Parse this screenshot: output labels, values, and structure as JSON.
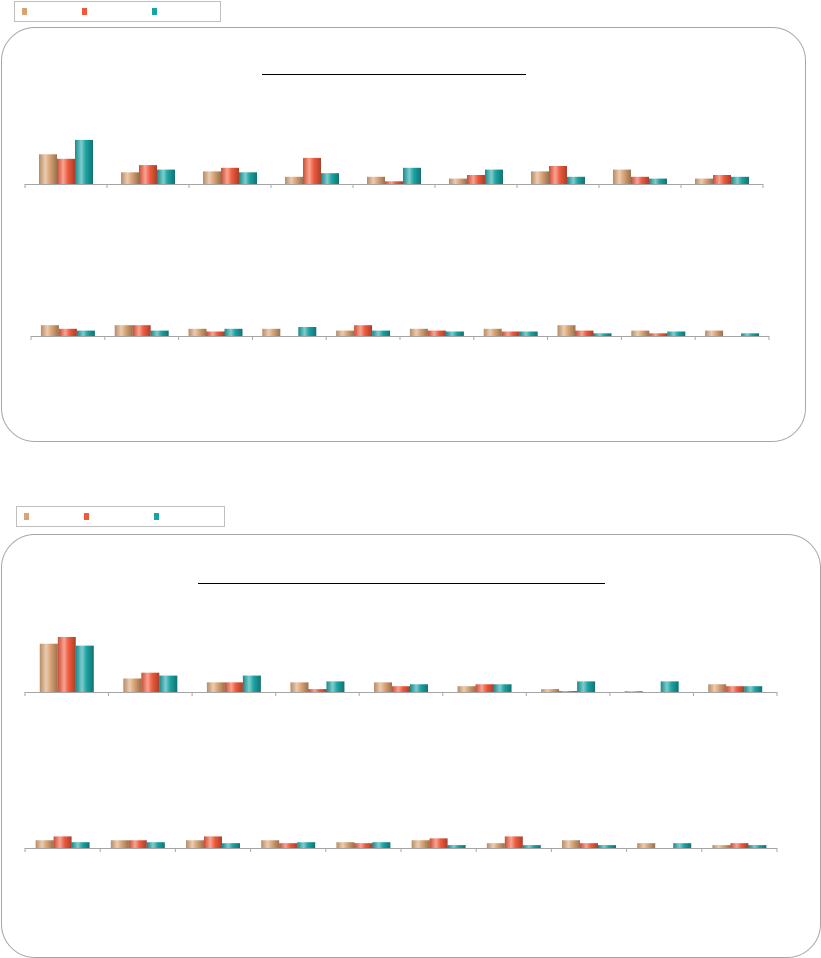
{
  "colors": {
    "series_a": "#d9a373",
    "series_b": "#f05a3c",
    "series_c": "#1aa3a3",
    "axis": "#a6a6a6"
  },
  "chart_data": [
    {
      "type": "bar",
      "title": "",
      "legend": {
        "position": "top-left",
        "entries": [
          "",
          "",
          ""
        ]
      },
      "grid": false,
      "rows": [
        {
          "categories": [
            "",
            "",
            "",
            "",
            "",
            "",
            "",
            "",
            ""
          ],
          "ylim": [
            0,
            50
          ],
          "series": [
            {
              "values": [
                33,
                13,
                14,
                8,
                8,
                6,
                14,
                16,
                6
              ]
            },
            {
              "values": [
                28,
                21,
                18,
                29,
                3,
                10,
                20,
                8,
                10
              ]
            },
            {
              "values": [
                49,
                16,
                13,
                12,
                18,
                16,
                8,
                6,
                8
              ]
            }
          ]
        },
        {
          "categories": [
            "",
            "",
            "",
            "",
            "",
            "",
            "",
            "",
            "",
            ""
          ],
          "ylim": [
            0,
            50
          ],
          "series": [
            {
              "values": [
                12,
                12,
                8,
                8,
                6,
                8,
                8,
                12,
                6,
                6
              ]
            },
            {
              "values": [
                8,
                12,
                5,
                0,
                12,
                6,
                5,
                6,
                3,
                0
              ]
            },
            {
              "values": [
                6,
                6,
                8,
                10,
                6,
                5,
                5,
                3,
                5,
                3
              ]
            }
          ]
        }
      ]
    },
    {
      "type": "bar",
      "title": "",
      "legend": {
        "position": "top-left",
        "entries": [
          "",
          "",
          ""
        ]
      },
      "grid": false,
      "rows": [
        {
          "categories": [
            "",
            "",
            "",
            "",
            "",
            "",
            "",
            "",
            ""
          ],
          "ylim": [
            0,
            58
          ],
          "series": [
            {
              "values": [
                50,
                14,
                10,
                10,
                10,
                6,
                3,
                1,
                8
              ]
            },
            {
              "values": [
                57,
                20,
                10,
                3,
                6,
                8,
                1,
                0,
                6
              ]
            },
            {
              "values": [
                48,
                17,
                17,
                11,
                8,
                8,
                11,
                11,
                6
              ]
            }
          ]
        },
        {
          "categories": [
            "",
            "",
            "",
            "",
            "",
            "",
            "",
            "",
            "",
            ""
          ],
          "ylim": [
            0,
            58
          ],
          "series": [
            {
              "values": [
                8,
                8,
                8,
                8,
                6,
                8,
                5,
                8,
                5,
                3
              ]
            },
            {
              "values": [
                12,
                8,
                12,
                5,
                5,
                10,
                12,
                5,
                0,
                5
              ]
            },
            {
              "values": [
                6,
                6,
                5,
                6,
                6,
                3,
                3,
                3,
                5,
                3
              ]
            }
          ]
        }
      ]
    }
  ]
}
